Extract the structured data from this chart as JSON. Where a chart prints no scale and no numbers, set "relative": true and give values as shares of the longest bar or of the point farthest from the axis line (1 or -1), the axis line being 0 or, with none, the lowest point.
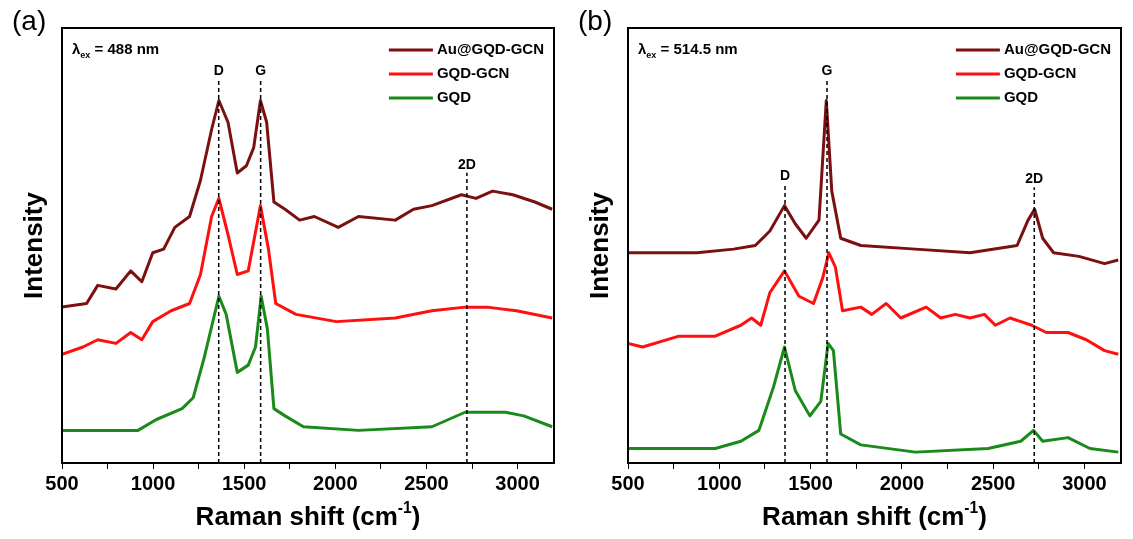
{
  "chart_data": [
    {
      "type": "line",
      "title": "(a)",
      "xlabel": "Raman shift (cm$^{-1}$)",
      "ylabel": "Intensity",
      "relative": true,
      "legend": "top right",
      "annotations": [
        "λ$_{ex}$ = 488 nm"
      ],
      "xlim": [
        500,
        3200
      ],
      "xticks": [
        500,
        {
          "value": 750,
          "label": null
        },
        1000,
        {
          "value": 1250,
          "label": null
        },
        1500,
        {
          "value": 1750,
          "label": null
        },
        2000,
        {
          "value": 2250,
          "label": null
        },
        2500,
        {
          "value": 2750,
          "label": null
        },
        3000
      ],
      "ref_lines": [
        {
          "axis": "x",
          "value": 1360,
          "label": "D",
          "line_style": "dashed"
        },
        {
          "axis": "x",
          "value": 1590,
          "label": "G",
          "line_style": "dashed"
        },
        {
          "axis": "x",
          "value": 2722,
          "label": "2D",
          "line_style": "dashed"
        }
      ],
      "series": [
        {
          "name": "Au@GQD-GCN",
          "color": "#7b1010",
          "x": [
            500,
            635,
            696,
            796,
            877,
            938,
            998,
            1058,
            1119,
            1200,
            1260,
            1321,
            1361,
            1411,
            1462,
            1512,
            1552,
            1589,
            1623,
            1663,
            1724,
            1804,
            1885,
            2016,
            2127,
            2329,
            2429,
            2530,
            2692,
            2772,
            2863,
            2974,
            3095,
            3190
          ],
          "values": [
            0.43,
            0.44,
            0.49,
            0.48,
            0.53,
            0.5,
            0.58,
            0.59,
            0.65,
            0.68,
            0.78,
            0.92,
            1.0,
            0.94,
            0.8,
            0.82,
            0.87,
            1.0,
            0.94,
            0.72,
            0.7,
            0.67,
            0.68,
            0.65,
            0.68,
            0.67,
            0.7,
            0.71,
            0.74,
            0.73,
            0.75,
            0.74,
            0.72,
            0.7
          ]
        },
        {
          "name": "GQD-GCN",
          "color": "#ff1010",
          "x": [
            500,
            615,
            696,
            796,
            877,
            938,
            998,
            1099,
            1200,
            1260,
            1321,
            1361,
            1411,
            1462,
            1522,
            1589,
            1633,
            1673,
            1784,
            2006,
            2329,
            2530,
            2712,
            2833,
            2994,
            3190
          ],
          "values": [
            0.3,
            0.32,
            0.34,
            0.33,
            0.36,
            0.34,
            0.39,
            0.42,
            0.44,
            0.52,
            0.68,
            0.73,
            0.63,
            0.52,
            0.53,
            0.71,
            0.59,
            0.44,
            0.41,
            0.39,
            0.4,
            0.42,
            0.43,
            0.43,
            0.42,
            0.4
          ]
        },
        {
          "name": "GQD",
          "color": "#1a8a1a",
          "x": [
            500,
            917,
            1018,
            1159,
            1220,
            1280,
            1361,
            1401,
            1462,
            1522,
            1562,
            1593,
            1627,
            1663,
            1724,
            1825,
            2127,
            2530,
            2712,
            2934,
            3034,
            3190
          ],
          "values": [
            0.09,
            0.09,
            0.12,
            0.15,
            0.18,
            0.29,
            0.46,
            0.41,
            0.25,
            0.27,
            0.32,
            0.46,
            0.37,
            0.15,
            0.13,
            0.1,
            0.09,
            0.1,
            0.14,
            0.14,
            0.13,
            0.1
          ]
        }
      ]
    },
    {
      "type": "line",
      "title": "(b)",
      "xlabel": "Raman shift (cm$^{-1}$)",
      "ylabel": "Intensity",
      "relative": true,
      "legend": "top right",
      "annotations": [
        "λ$_{ex}$ = 514.5 nm"
      ],
      "xlim": [
        500,
        3200
      ],
      "xticks": [
        500,
        {
          "value": 750,
          "label": null
        },
        1000,
        {
          "value": 1250,
          "label": null
        },
        1500,
        {
          "value": 1750,
          "label": null
        },
        2000,
        {
          "value": 2250,
          "label": null
        },
        2500,
        {
          "value": 2750,
          "label": null
        },
        3000
      ],
      "ref_lines": [
        {
          "axis": "x",
          "value": 1360,
          "label": "D",
          "line_style": "dashed"
        },
        {
          "axis": "x",
          "value": 1590,
          "label": "G",
          "line_style": "dashed"
        },
        {
          "axis": "x",
          "value": 2725,
          "label": "2D",
          "line_style": "dashed"
        }
      ],
      "series": [
        {
          "name": "Au@GQD-GCN",
          "color": "#7b1010",
          "x": [
            500,
            878,
            1078,
            1197,
            1277,
            1357,
            1416,
            1476,
            1546,
            1586,
            1616,
            1665,
            1775,
            2074,
            2373,
            2631,
            2691,
            2727,
            2771,
            2831,
            2970,
            3110,
            3185
          ],
          "values": [
            0.58,
            0.58,
            0.59,
            0.6,
            0.64,
            0.71,
            0.66,
            0.62,
            0.67,
            1.0,
            0.75,
            0.62,
            0.6,
            0.59,
            0.58,
            0.6,
            0.67,
            0.7,
            0.62,
            0.58,
            0.57,
            0.55,
            0.56
          ]
        },
        {
          "name": "GQD-GCN",
          "color": "#ff1010",
          "x": [
            500,
            580,
            779,
            978,
            1118,
            1177,
            1227,
            1277,
            1357,
            1436,
            1516,
            1566,
            1600,
            1636,
            1675,
            1775,
            1835,
            1914,
            1994,
            2133,
            2213,
            2293,
            2373,
            2452,
            2512,
            2592,
            2711,
            2791,
            2910,
            3010,
            3110,
            3185
          ],
          "values": [
            0.33,
            0.32,
            0.35,
            0.35,
            0.38,
            0.4,
            0.38,
            0.47,
            0.53,
            0.46,
            0.44,
            0.51,
            0.58,
            0.54,
            0.42,
            0.43,
            0.41,
            0.44,
            0.4,
            0.43,
            0.4,
            0.41,
            0.4,
            0.41,
            0.38,
            0.4,
            0.38,
            0.36,
            0.36,
            0.34,
            0.31,
            0.3
          ]
        },
        {
          "name": "GQD",
          "color": "#1a8a1a",
          "x": [
            500,
            978,
            1118,
            1217,
            1297,
            1357,
            1416,
            1496,
            1556,
            1596,
            1625,
            1665,
            1775,
            2074,
            2472,
            2651,
            2721,
            2771,
            2910,
            3030,
            3185
          ],
          "values": [
            0.04,
            0.04,
            0.06,
            0.09,
            0.21,
            0.32,
            0.2,
            0.13,
            0.17,
            0.33,
            0.31,
            0.08,
            0.05,
            0.03,
            0.04,
            0.06,
            0.09,
            0.06,
            0.07,
            0.04,
            0.03
          ]
        }
      ]
    }
  ]
}
